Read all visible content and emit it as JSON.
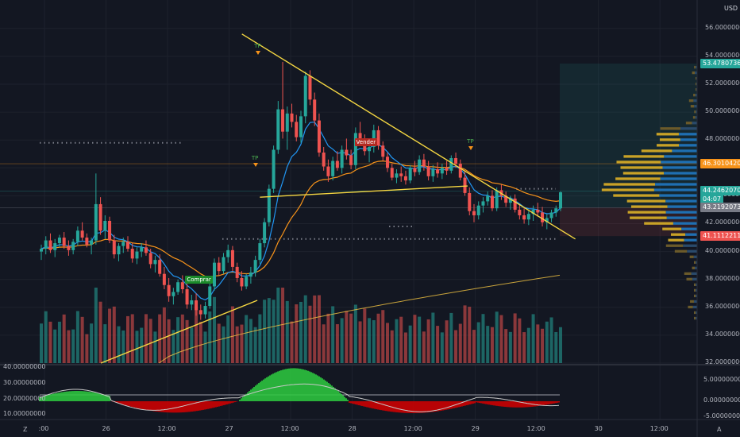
{
  "currency": "USD",
  "price_axis": [
    "56.00000000",
    "54.00000000",
    "52.00000000",
    "50.00000000",
    "48.00000000",
    "46.00000000",
    "44.00000000",
    "42.00000000",
    "40.00000000",
    "38.00000000",
    "36.00000000",
    "34.00000000",
    "32.00000000"
  ],
  "price_tags": [
    {
      "label": "53.47807361",
      "color": "#26a69a",
      "price": 53.48
    },
    {
      "label": "46.30104209",
      "color": "#f7931a",
      "price": 46.3
    },
    {
      "label": "44.24620705",
      "color": "#26a69a",
      "price": 44.35
    },
    {
      "label": "04:07",
      "color": "#26a69a",
      "price": 43.75
    },
    {
      "label": "43.21920735",
      "color": "#787b86",
      "price": 43.15
    },
    {
      "label": "41.11122114",
      "color": "#ef5350",
      "price": 41.11
    }
  ],
  "osc_left_axis": [
    "40.00000000",
    "30.00000000",
    "20.00000000",
    "10.00000000"
  ],
  "osc_right_axis": [
    "5.00000000",
    "0.00000000",
    "-5.00000000"
  ],
  "time_axis": [
    {
      "label": ":00",
      "x": 0.0
    },
    {
      "label": "26",
      "x": 0.24
    },
    {
      "label": "12:00",
      "x": 0.48
    },
    {
      "label": "27",
      "x": 0.72
    },
    {
      "label": "12:00",
      "x": 0.96
    },
    {
      "label": "28",
      "x": 1.2
    },
    {
      "label": "12:00",
      "x": 1.44
    },
    {
      "label": "29",
      "x": 1.68
    },
    {
      "label": "12:00",
      "x": 1.92
    },
    {
      "label": "30",
      "x": 2.16
    },
    {
      "label": "12:00",
      "x": 2.4
    }
  ],
  "axis_corner_left": "Z",
  "axis_corner_right": "A",
  "signals": [
    {
      "text": "Comprar",
      "x": 0.58,
      "price": 37.9,
      "color": "#1b8a2a"
    },
    {
      "text": "Vender",
      "x": 1.24,
      "price": 47.8,
      "color": "#b22a22"
    }
  ],
  "tp_markers": [
    {
      "text": "TP",
      "x": 0.83,
      "price": 54.6
    },
    {
      "text": "TP",
      "x": 0.82,
      "price": 46.6
    },
    {
      "text": "TP",
      "x": 1.66,
      "price": 47.8
    }
  ],
  "colors": {
    "background": "#131722",
    "up": "#26a69a",
    "down": "#ef5350",
    "ema_fast": "#2196f3",
    "ema_slow": "#f7931a",
    "ma_long": "#f5c542",
    "trendline": "#f5d742",
    "osc_up": "#2ecc40",
    "osc_down": "#d50000"
  },
  "chart_data": {
    "type": "candlestick",
    "x_unit": "days from 25 00:00",
    "candles": [
      [
        40.0,
        40.5,
        39.4,
        40.2
      ],
      [
        40.2,
        41.1,
        39.8,
        40.8
      ],
      [
        40.8,
        41.3,
        39.9,
        40.1
      ],
      [
        40.1,
        40.9,
        39.6,
        40.6
      ],
      [
        40.6,
        41.2,
        40.3,
        41.0
      ],
      [
        41.0,
        41.4,
        40.2,
        40.4
      ],
      [
        40.4,
        40.8,
        39.7,
        40.1
      ],
      [
        40.1,
        40.9,
        39.8,
        40.7
      ],
      [
        40.7,
        41.8,
        40.4,
        41.5
      ],
      [
        41.5,
        42.1,
        40.8,
        41.0
      ],
      [
        41.0,
        41.3,
        40.3,
        40.5
      ],
      [
        40.5,
        41.0,
        39.8,
        40.8
      ],
      [
        40.8,
        45.6,
        40.5,
        43.4
      ],
      [
        43.4,
        43.9,
        41.2,
        41.5
      ],
      [
        41.5,
        42.6,
        40.9,
        42.2
      ],
      [
        42.2,
        42.5,
        40.6,
        40.8
      ],
      [
        40.8,
        41.2,
        39.5,
        39.8
      ],
      [
        39.8,
        40.6,
        39.3,
        40.4
      ],
      [
        40.4,
        41.0,
        39.9,
        40.7
      ],
      [
        40.7,
        41.1,
        40.0,
        40.2
      ],
      [
        40.2,
        40.6,
        39.2,
        39.5
      ],
      [
        39.5,
        40.3,
        39.1,
        40.0
      ],
      [
        40.0,
        40.6,
        39.6,
        40.3
      ],
      [
        40.3,
        40.8,
        39.7,
        39.9
      ],
      [
        39.9,
        40.2,
        38.8,
        39.1
      ],
      [
        39.1,
        39.7,
        38.5,
        39.4
      ],
      [
        39.4,
        39.8,
        38.2,
        38.4
      ],
      [
        38.4,
        38.9,
        37.3,
        37.6
      ],
      [
        37.6,
        38.1,
        36.4,
        36.8
      ],
      [
        36.8,
        37.4,
        36.2,
        37.1
      ],
      [
        37.1,
        38.0,
        36.9,
        37.8
      ],
      [
        37.8,
        38.3,
        37.0,
        37.3
      ],
      [
        37.3,
        37.8,
        35.9,
        36.2
      ],
      [
        36.2,
        36.9,
        35.8,
        36.5
      ],
      [
        36.5,
        37.0,
        35.4,
        35.8
      ],
      [
        35.8,
        36.2,
        35.1,
        35.5
      ],
      [
        35.5,
        36.4,
        35.2,
        36.1
      ],
      [
        36.1,
        37.8,
        35.9,
        37.5
      ],
      [
        37.5,
        39.5,
        37.2,
        39.2
      ],
      [
        39.2,
        39.6,
        38.3,
        38.6
      ],
      [
        38.6,
        39.9,
        38.4,
        39.6
      ],
      [
        39.6,
        40.5,
        39.2,
        40.1
      ],
      [
        40.1,
        40.4,
        38.6,
        38.9
      ],
      [
        38.9,
        39.2,
        37.8,
        38.1
      ],
      [
        38.1,
        38.6,
        37.2,
        37.5
      ],
      [
        37.5,
        38.4,
        37.3,
        38.2
      ],
      [
        38.2,
        38.9,
        37.7,
        38.5
      ],
      [
        38.5,
        39.7,
        38.2,
        39.4
      ],
      [
        39.4,
        40.9,
        39.1,
        40.6
      ],
      [
        40.6,
        42.4,
        40.3,
        42.1
      ],
      [
        42.1,
        44.8,
        41.8,
        44.5
      ],
      [
        44.5,
        47.6,
        44.2,
        47.3
      ],
      [
        47.3,
        50.8,
        47.0,
        50.2
      ],
      [
        50.2,
        53.6,
        48.1,
        48.6
      ],
      [
        48.6,
        50.4,
        47.3,
        49.9
      ],
      [
        49.9,
        50.6,
        48.9,
        49.3
      ],
      [
        49.3,
        49.8,
        47.9,
        48.2
      ],
      [
        48.2,
        50.1,
        47.8,
        49.7
      ],
      [
        49.7,
        52.9,
        49.2,
        52.6
      ],
      [
        52.6,
        53.0,
        50.5,
        50.9
      ],
      [
        50.9,
        51.4,
        49.0,
        49.4
      ],
      [
        49.4,
        49.9,
        46.8,
        47.1
      ],
      [
        47.1,
        47.5,
        45.8,
        46.1
      ],
      [
        46.1,
        46.6,
        45.0,
        45.4
      ],
      [
        45.4,
        46.8,
        45.1,
        46.5
      ],
      [
        46.5,
        47.2,
        45.8,
        46.0
      ],
      [
        46.0,
        47.6,
        45.6,
        47.3
      ],
      [
        47.3,
        48.1,
        46.6,
        46.9
      ],
      [
        46.9,
        47.3,
        45.9,
        46.2
      ],
      [
        46.2,
        48.9,
        45.9,
        48.5
      ],
      [
        48.5,
        49.3,
        47.8,
        48.0
      ],
      [
        48.0,
        48.4,
        46.9,
        47.2
      ],
      [
        47.2,
        47.8,
        46.4,
        47.5
      ],
      [
        47.5,
        49.1,
        47.1,
        48.7
      ],
      [
        48.7,
        49.0,
        47.3,
        47.6
      ],
      [
        47.6,
        47.9,
        46.5,
        46.8
      ],
      [
        46.8,
        47.1,
        45.7,
        46.0
      ],
      [
        46.0,
        46.3,
        45.1,
        45.3
      ],
      [
        45.3,
        45.9,
        44.9,
        45.6
      ],
      [
        45.6,
        46.1,
        45.0,
        45.4
      ],
      [
        45.4,
        45.8,
        44.8,
        45.1
      ],
      [
        45.1,
        46.2,
        44.9,
        46.0
      ],
      [
        46.0,
        46.5,
        45.4,
        45.7
      ],
      [
        45.7,
        46.9,
        45.5,
        46.6
      ],
      [
        46.6,
        47.0,
        45.8,
        46.1
      ],
      [
        46.1,
        46.5,
        45.1,
        45.4
      ],
      [
        45.4,
        46.2,
        45.0,
        45.9
      ],
      [
        45.9,
        46.4,
        45.3,
        45.6
      ],
      [
        45.6,
        46.3,
        45.2,
        46.0
      ],
      [
        46.0,
        46.5,
        45.5,
        45.8
      ],
      [
        45.8,
        46.9,
        45.6,
        46.7
      ],
      [
        46.7,
        47.1,
        46.0,
        46.3
      ],
      [
        46.3,
        46.6,
        45.1,
        45.3
      ],
      [
        45.3,
        45.8,
        44.0,
        44.2
      ],
      [
        44.2,
        44.6,
        42.6,
        42.9
      ],
      [
        42.9,
        43.4,
        42.1,
        42.6
      ],
      [
        42.6,
        43.6,
        42.3,
        43.3
      ],
      [
        43.3,
        43.9,
        42.8,
        43.6
      ],
      [
        43.6,
        44.3,
        43.3,
        44.0
      ],
      [
        44.0,
        44.4,
        42.9,
        43.1
      ],
      [
        43.1,
        44.6,
        42.9,
        44.4
      ],
      [
        44.4,
        44.8,
        43.7,
        44.0
      ],
      [
        44.0,
        44.3,
        43.2,
        43.5
      ],
      [
        43.5,
        44.0,
        43.0,
        43.8
      ],
      [
        43.8,
        44.1,
        42.8,
        43.0
      ],
      [
        43.0,
        43.4,
        42.3,
        42.6
      ],
      [
        42.6,
        43.1,
        42.0,
        42.3
      ],
      [
        42.3,
        42.9,
        41.9,
        42.7
      ],
      [
        42.7,
        43.3,
        42.2,
        43.0
      ],
      [
        43.0,
        43.5,
        42.5,
        42.8
      ],
      [
        42.8,
        43.2,
        41.8,
        42.1
      ],
      [
        42.1,
        42.7,
        41.6,
        42.4
      ],
      [
        42.4,
        43.0,
        42.1,
        42.8
      ],
      [
        42.8,
        43.3,
        42.5,
        43.1
      ],
      [
        43.1,
        44.3,
        42.9,
        44.25
      ]
    ],
    "ma_long_start": 32.0,
    "ma_long_end": 38.3,
    "trendlines": [
      {
        "x1": 0.77,
        "y1": 55.6,
        "x2": 2.07,
        "y2": 40.9
      },
      {
        "x1": 0.22,
        "y1": 32.0,
        "x2": 0.83,
        "y2": 36.5
      },
      {
        "x1": 0.84,
        "y1": 43.9,
        "x2": 1.65,
        "y2": 44.7
      }
    ],
    "fib_lines": [
      46.3,
      44.35,
      43.15
    ],
    "ylim": [
      32,
      56.9
    ]
  }
}
